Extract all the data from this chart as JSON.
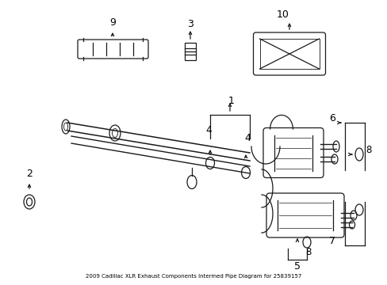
{
  "title": "2009 Cadillac XLR Exhaust Components Intermed Pipe Diagram for 25839157",
  "bg_color": "#ffffff",
  "line_color": "#1a1a1a",
  "fig_width": 4.89,
  "fig_height": 3.6,
  "dpi": 100
}
